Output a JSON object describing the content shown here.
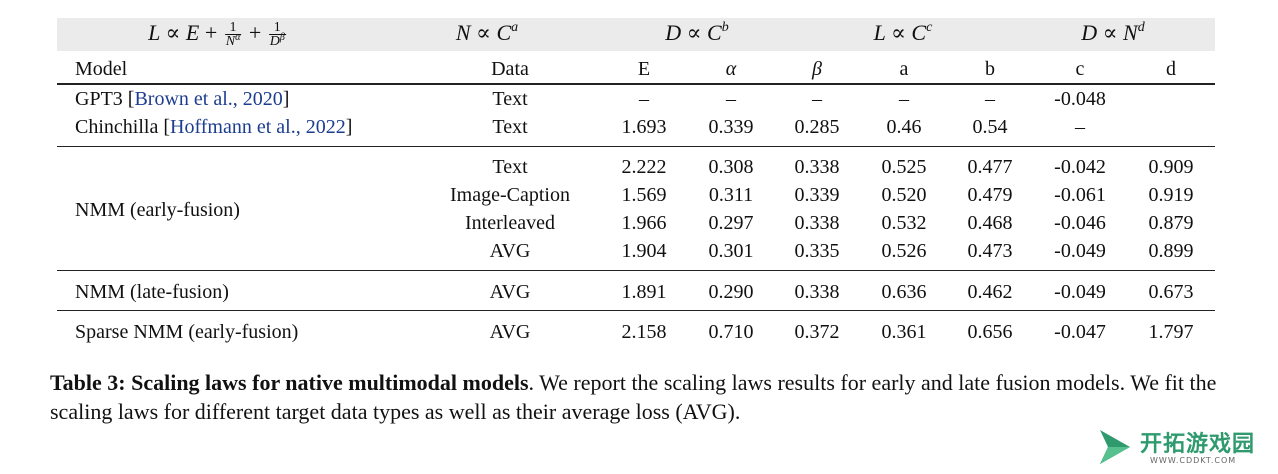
{
  "table": {
    "group_headers": {
      "loss_law": {
        "L": "L",
        "prop": "∝",
        "E": "E",
        "plus": "+",
        "one": "1",
        "N": "N",
        "alpha": "α",
        "D": "D",
        "beta": "β"
      },
      "n_law": {
        "lhs": "N",
        "rhs": "C",
        "exp": "a"
      },
      "d_law": {
        "lhs": "D",
        "rhs": "C",
        "exp": "b"
      },
      "l_law": {
        "lhs": "L",
        "rhs": "C",
        "exp": "c"
      },
      "dn_law": {
        "lhs": "D",
        "rhs": "N",
        "exp": "d"
      },
      "prop": "∝"
    },
    "columns": [
      "Model",
      "Data",
      "E",
      "α",
      "β",
      "a",
      "b",
      "c",
      "d"
    ],
    "reference_rows": [
      {
        "model": "GPT3",
        "cite": "Brown et al., 2020",
        "data": "Text",
        "values": [
          "–",
          "–",
          "–",
          "–",
          "–",
          "-0.048",
          ""
        ]
      },
      {
        "model": "Chinchilla",
        "cite": "Hoffmann et al., 2022",
        "data": "Text",
        "values": [
          "1.693",
          "0.339",
          "0.285",
          "0.46",
          "0.54",
          "–",
          ""
        ]
      }
    ],
    "early_fusion": {
      "model": "NMM (early-fusion)",
      "rows": [
        {
          "data": "Text",
          "values": [
            "2.222",
            "0.308",
            "0.338",
            "0.525",
            "0.477",
            "-0.042",
            "0.909"
          ]
        },
        {
          "data": "Image-Caption",
          "values": [
            "1.569",
            "0.311",
            "0.339",
            "0.520",
            "0.479",
            "-0.061",
            "0.919"
          ]
        },
        {
          "data": "Interleaved",
          "values": [
            "1.966",
            "0.297",
            "0.338",
            "0.532",
            "0.468",
            "-0.046",
            "0.879"
          ]
        },
        {
          "data": "AVG",
          "values": [
            "1.904",
            "0.301",
            "0.335",
            "0.526",
            "0.473",
            "-0.049",
            "0.899"
          ]
        }
      ]
    },
    "late_fusion": {
      "model": "NMM (late-fusion)",
      "data": "AVG",
      "values": [
        "1.891",
        "0.290",
        "0.338",
        "0.636",
        "0.462",
        "-0.049",
        "0.673"
      ]
    },
    "sparse": {
      "model": "Sparse NMM (early-fusion)",
      "data": "AVG",
      "values": [
        "2.158",
        "0.710",
        "0.372",
        "0.361",
        "0.656",
        "-0.047",
        "1.797"
      ]
    }
  },
  "caption": {
    "label": "Table 3: Scaling laws for native multimodal models",
    "text": ". We report the scaling laws results for early and late fusion models. We fit the scaling laws for different target data types as well as their average loss (AVG)."
  },
  "watermark": {
    "name": "开拓游戏园",
    "url": "WWW.CDDKT.COM"
  }
}
